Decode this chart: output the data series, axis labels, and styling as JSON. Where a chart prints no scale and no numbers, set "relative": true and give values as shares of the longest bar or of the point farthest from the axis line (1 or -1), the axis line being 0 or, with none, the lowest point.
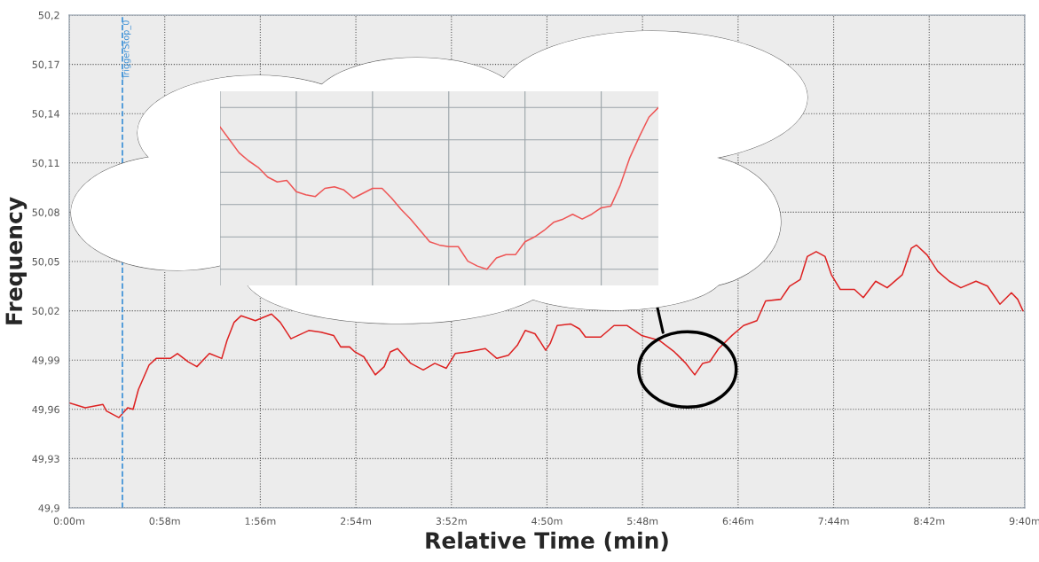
{
  "chart_data": [
    {
      "type": "line",
      "xlabel": "Relative Time (min)",
      "ylabel": "Frequency",
      "grid": true,
      "marker": "none",
      "line_style": "solid",
      "xlim": [
        0,
        580
      ],
      "xticks": [
        {
          "value": 0,
          "label": "0:00m"
        },
        {
          "value": 58,
          "label": "0:58m"
        },
        {
          "value": 116,
          "label": "1:56m"
        },
        {
          "value": 174,
          "label": "2:54m"
        },
        {
          "value": 232,
          "label": "3:52m"
        },
        {
          "value": 290,
          "label": "4:50m"
        },
        {
          "value": 348,
          "label": "5:48m"
        },
        {
          "value": 406,
          "label": "6:46m"
        },
        {
          "value": 464,
          "label": "7:44m"
        },
        {
          "value": 522,
          "label": "8:42m"
        },
        {
          "value": 580,
          "label": "9:40m"
        }
      ],
      "ylim": [
        49.9,
        50.2
      ],
      "yticks": [
        {
          "value": 49.9,
          "label": "49,9"
        },
        {
          "value": 49.93,
          "label": "49,93"
        },
        {
          "value": 49.96,
          "label": "49,96"
        },
        {
          "value": 49.99,
          "label": "49,99"
        },
        {
          "value": 50.02,
          "label": "50,02"
        },
        {
          "value": 50.05,
          "label": "50,05"
        },
        {
          "value": 50.08,
          "label": "50,08"
        },
        {
          "value": 50.11,
          "label": "50,11"
        },
        {
          "value": 50.14,
          "label": "50,14"
        },
        {
          "value": 50.17,
          "label": "50,17"
        },
        {
          "value": 50.2,
          "label": "50,2"
        }
      ],
      "ref_lines": [
        {
          "axis": "x",
          "value": 32.3,
          "label": "TriggerStop_0",
          "color": "#3a8fd6",
          "line_style": "dashed"
        }
      ],
      "series": [
        {
          "color": "#dd2222",
          "x": [
            0,
            9.7,
            20.5,
            22.6,
            30.2,
            35.5,
            38.8,
            42.0,
            48.5,
            52.8,
            61.4,
            65.7,
            72.2,
            77.5,
            85.1,
            92.6,
            95.8,
            100.1,
            104.4,
            113.0,
            122.8,
            128.1,
            134.6,
            145.4,
            152.9,
            160.5,
            164.8,
            170.2,
            173.4,
            178.8,
            185.8,
            191.2,
            194.9,
            199.3,
            207.3,
            214.9,
            221.9,
            228.9,
            234.3,
            241.8,
            252.6,
            259.6,
            266.6,
            272.0,
            276.8,
            282.7,
            285.4,
            289.2,
            291.9,
            296.2,
            304.3,
            309.7,
            313.4,
            322.6,
            330.7,
            338.7,
            347.4,
            358.1,
            367.3,
            374.3,
            379.7,
            384.5,
            388.8,
            394.2,
            402.3,
            409.3,
            417.4,
            422.7,
            431.9,
            437.3,
            443.7,
            448.0,
            453.4,
            458.8,
            462.6,
            468.0,
            476.6,
            482.0,
            489.5,
            496.5,
            505.7,
            511.1,
            514.3,
            520.7,
            527.2,
            534.2,
            541.2,
            550.4,
            557.4,
            564.9,
            571.9,
            575.7,
            578.9
          ],
          "values": [
            49.964,
            49.961,
            49.963,
            49.959,
            49.955,
            49.961,
            49.96,
            49.972,
            49.987,
            49.991,
            49.991,
            49.994,
            49.989,
            49.986,
            49.994,
            49.991,
            50.002,
            50.013,
            50.017,
            50.014,
            50.018,
            50.013,
            50.003,
            50.008,
            50.007,
            50.005,
            49.998,
            49.998,
            49.995,
            49.992,
            49.981,
            49.986,
            49.995,
            49.997,
            49.988,
            49.984,
            49.988,
            49.985,
            49.994,
            49.995,
            49.997,
            49.991,
            49.993,
            49.999,
            50.008,
            50.006,
            50.002,
            49.996,
            50.0,
            50.011,
            50.012,
            50.009,
            50.004,
            50.004,
            50.011,
            50.011,
            50.005,
            50.002,
            49.995,
            49.988,
            49.981,
            49.988,
            49.989,
            49.997,
            50.005,
            50.011,
            50.014,
            50.026,
            50.027,
            50.035,
            50.039,
            50.053,
            50.056,
            50.053,
            50.042,
            50.033,
            50.033,
            50.028,
            50.038,
            50.034,
            50.042,
            50.058,
            50.06,
            50.054,
            50.044,
            50.038,
            50.034,
            50.038,
            50.035,
            50.024,
            50.031,
            50.027,
            50.02
          ]
        }
      ]
    },
    {
      "type": "line",
      "relative": true,
      "grid": true,
      "tick_labels": false,
      "marker": "none",
      "line_style": "solid",
      "categories": [
        null,
        null,
        null,
        null,
        null,
        null,
        null,
        null,
        null,
        null,
        null,
        null,
        null,
        null,
        null,
        null,
        null,
        null,
        null,
        null,
        null,
        null,
        null,
        null,
        null,
        null,
        null,
        null,
        null,
        null,
        null,
        null,
        null,
        null,
        null,
        null,
        null,
        null,
        null,
        null,
        null,
        null,
        null,
        null,
        null,
        null,
        null
      ],
      "series": [
        {
          "color": "#ee5555",
          "values": [
            0.88,
            0.8,
            0.72,
            0.67,
            0.63,
            0.57,
            0.54,
            0.55,
            0.48,
            0.46,
            0.45,
            0.5,
            0.51,
            0.49,
            0.44,
            0.47,
            0.5,
            0.5,
            0.44,
            0.37,
            0.31,
            0.24,
            0.17,
            0.15,
            0.14,
            0.14,
            0.05,
            0.02,
            0.0,
            0.07,
            0.09,
            0.09,
            0.17,
            0.2,
            0.24,
            0.29,
            0.31,
            0.34,
            0.31,
            0.34,
            0.38,
            0.39,
            0.52,
            0.69,
            0.82,
            0.94,
            1.0
          ]
        }
      ]
    }
  ]
}
